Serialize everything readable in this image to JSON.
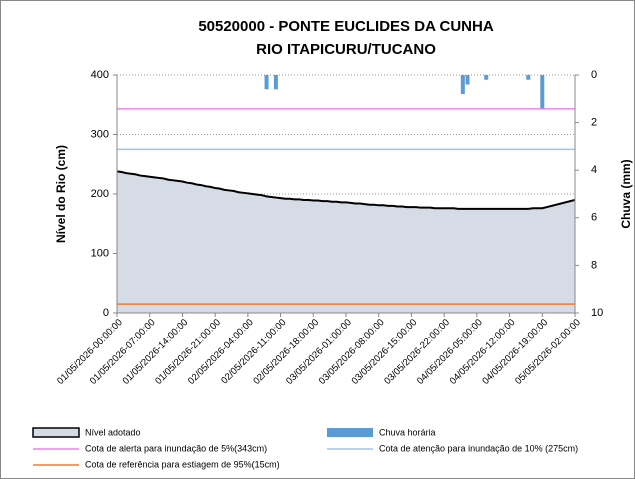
{
  "chart_data": {
    "type": "line",
    "title": "50520000 - PONTE EUCLIDES DA CUNHA",
    "subtitle": "RIO ITAPICURU/TUCANO",
    "ylabel": "Nível do Rio (cm)",
    "y2label": "Chuva (mm)",
    "ylim": [
      0,
      400
    ],
    "yticks": [
      0,
      100,
      200,
      300,
      400
    ],
    "y2lim": [
      10,
      0
    ],
    "y2ticks": [
      0,
      2,
      4,
      6,
      8,
      10
    ],
    "y2_inverted": true,
    "grid": true,
    "categories": [
      "01/05/2026-00:00:00",
      null,
      null,
      null,
      null,
      null,
      null,
      "01/05/2026-07:00:00",
      null,
      null,
      null,
      null,
      null,
      null,
      "01/05/2026-14:00:00",
      null,
      null,
      null,
      null,
      null,
      null,
      "01/05/2026-21:00:00",
      null,
      null,
      null,
      null,
      null,
      null,
      "02/05/2026-04:00:00",
      null,
      null,
      null,
      null,
      null,
      null,
      "02/05/2026-11:00:00",
      null,
      null,
      null,
      null,
      null,
      null,
      "02/05/2026-18:00:00",
      null,
      null,
      null,
      null,
      null,
      null,
      "03/05/2026-01:00:00",
      null,
      null,
      null,
      null,
      null,
      null,
      "03/05/2026-08:00:00",
      null,
      null,
      null,
      null,
      null,
      null,
      "03/05/2026-15:00:00",
      null,
      null,
      null,
      null,
      null,
      null,
      "03/05/2026-22:00:00",
      null,
      null,
      null,
      null,
      null,
      null,
      "04/05/2026-05:00:00",
      null,
      null,
      null,
      null,
      null,
      null,
      "04/05/2026-12:00:00",
      null,
      null,
      null,
      null,
      null,
      null,
      "04/05/2026-19:00:00",
      null,
      null,
      null,
      null,
      null,
      null,
      "05/05/2026-02:00:00"
    ],
    "series": [
      {
        "name": "Nível adotado",
        "color": "#d6dce6",
        "line_color": "#000000",
        "kind": "area",
        "values": [
          238,
          237,
          235,
          234,
          233,
          231,
          230,
          229,
          228,
          227,
          226,
          224,
          223,
          222,
          221,
          219,
          218,
          216,
          215,
          213,
          212,
          210,
          209,
          207,
          206,
          205,
          203,
          202,
          201,
          200,
          199,
          198,
          196,
          195,
          194,
          193,
          192,
          192,
          191,
          191,
          190,
          190,
          189,
          189,
          188,
          188,
          187,
          187,
          186,
          186,
          185,
          184,
          184,
          183,
          182,
          182,
          181,
          181,
          180,
          180,
          179,
          179,
          178,
          178,
          178,
          177,
          177,
          177,
          176,
          176,
          176,
          176,
          176,
          175,
          175,
          175,
          175,
          175,
          175,
          175,
          175,
          175,
          175,
          175,
          175,
          175,
          175,
          175,
          175,
          176,
          176,
          176,
          178,
          180,
          182,
          184,
          186,
          188,
          190
        ]
      },
      {
        "name": "Chuva horária",
        "color": "#5b9bd5",
        "kind": "bar",
        "axis": "y2",
        "values": [
          0,
          0,
          0,
          0,
          0,
          0,
          0,
          0,
          0,
          0,
          0,
          0,
          0,
          0,
          0,
          0,
          0,
          0,
          0,
          0,
          0,
          0,
          0,
          0,
          0,
          0,
          0,
          0,
          0,
          0,
          0,
          0,
          0.6,
          0,
          0.6,
          0,
          0,
          0,
          0,
          0,
          0,
          0,
          0,
          0,
          0,
          0,
          0,
          0,
          0,
          0,
          0,
          0,
          0,
          0,
          0,
          0,
          0,
          0,
          0,
          0,
          0,
          0,
          0,
          0,
          0,
          0,
          0,
          0,
          0,
          0,
          0,
          0,
          0,
          0,
          0.8,
          0.4,
          0,
          0,
          0,
          0.2,
          0,
          0,
          0,
          0,
          0,
          0,
          0,
          0,
          0.2,
          0,
          0,
          1.4,
          0,
          0,
          0,
          0,
          0,
          0,
          0
        ]
      }
    ],
    "reference_lines": [
      {
        "name": "Cota de alerta para inundação de 5%(343cm)",
        "value": 343,
        "color": "#ee82ee"
      },
      {
        "name": "Cota de atenção para inundação de 10% (275cm)",
        "value": 275,
        "color": "#9dc3e6"
      },
      {
        "name": "Cota de referência para estiagem de 95%(15cm)",
        "value": 15,
        "color": "#ed7d31"
      }
    ]
  }
}
